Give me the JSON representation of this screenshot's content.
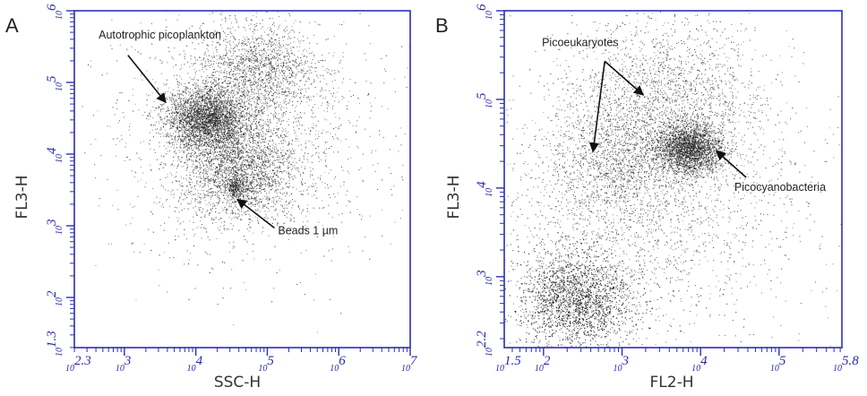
{
  "chart_data": [
    {
      "type": "scatter",
      "panel": "A",
      "xlabel": "SSC-H",
      "ylabel": "FL3-H",
      "xscale": "log",
      "yscale": "log",
      "xlim": [
        2.3,
        7
      ],
      "ylim": [
        1.3,
        6
      ],
      "x_ticks": [
        {
          "exp": "2.3",
          "value": 2.3
        },
        {
          "exp": "3",
          "value": 3
        },
        {
          "exp": "4",
          "value": 4
        },
        {
          "exp": "5",
          "value": 5
        },
        {
          "exp": "6",
          "value": 6
        },
        {
          "exp": "7",
          "value": 7
        }
      ],
      "y_ticks": [
        {
          "exp": "1.3",
          "value": 1.3
        },
        {
          "exp": "2",
          "value": 2
        },
        {
          "exp": "3",
          "value": 3
        },
        {
          "exp": "4",
          "value": 4
        },
        {
          "exp": "5",
          "value": 5
        },
        {
          "exp": "6",
          "value": 6
        }
      ],
      "clusters": [
        {
          "cx": 4.15,
          "cy": 4.5,
          "sx": 0.28,
          "sy": 0.22,
          "n": 3200
        },
        {
          "cx": 4.6,
          "cy": 3.8,
          "sx": 0.4,
          "sy": 0.35,
          "n": 2400
        },
        {
          "cx": 4.85,
          "cy": 5.2,
          "sx": 0.4,
          "sy": 0.3,
          "n": 1400
        },
        {
          "cx": 4.55,
          "cy": 3.55,
          "sx": 0.06,
          "sy": 0.08,
          "n": 260
        },
        {
          "cx": 4.7,
          "cy": 4.3,
          "sx": 0.9,
          "sy": 0.9,
          "n": 1800
        }
      ],
      "annotations": [
        {
          "text": "Autotrophic  picoplankton",
          "tx": 2.64,
          "ty": 5.61,
          "ax": 3.05,
          "ay": 5.38,
          "hx": 3.58,
          "hy": 4.72
        },
        {
          "text": "Beads 1 µm",
          "tx": 5.15,
          "ty": 2.88,
          "ax": 5.1,
          "ay": 2.97,
          "hx": 4.58,
          "hy": 3.37
        }
      ]
    },
    {
      "type": "scatter",
      "panel": "B",
      "xlabel": "FL2-H",
      "ylabel": "FL3-H",
      "xscale": "log",
      "yscale": "log",
      "xlim": [
        1.5,
        5.8
      ],
      "ylim": [
        2.2,
        6
      ],
      "x_ticks": [
        {
          "exp": "1.5",
          "value": 1.5
        },
        {
          "exp": "2",
          "value": 2
        },
        {
          "exp": "3",
          "value": 3
        },
        {
          "exp": "4",
          "value": 4
        },
        {
          "exp": "5",
          "value": 5
        },
        {
          "exp": "5.8",
          "value": 5.8
        }
      ],
      "y_ticks": [
        {
          "exp": "2.2",
          "value": 2.2
        },
        {
          "exp": "3",
          "value": 3
        },
        {
          "exp": "4",
          "value": 4
        },
        {
          "exp": "5",
          "value": 5
        },
        {
          "exp": "6",
          "value": 6
        }
      ],
      "clusters": [
        {
          "cx": 2.4,
          "cy": 2.75,
          "sx": 0.35,
          "sy": 0.28,
          "n": 3400
        },
        {
          "cx": 3.85,
          "cy": 4.45,
          "sx": 0.22,
          "sy": 0.14,
          "n": 2600
        },
        {
          "cx": 2.95,
          "cy": 4.3,
          "sx": 0.45,
          "sy": 0.4,
          "n": 1400
        },
        {
          "cx": 3.6,
          "cy": 5.0,
          "sx": 0.6,
          "sy": 0.45,
          "n": 1800
        },
        {
          "cx": 3.3,
          "cy": 3.8,
          "sx": 1.0,
          "sy": 0.8,
          "n": 2200
        }
      ],
      "annotations": [
        {
          "text": "Picoeukaryotes",
          "tx": 1.98,
          "ty": 5.6,
          "ax": 2.78,
          "ay": 5.43,
          "hx": 3.27,
          "hy": 5.05,
          "hx2": 2.63,
          "hy2": 4.41
        },
        {
          "text": "Picocyanobacteria",
          "tx": 4.43,
          "ty": 3.97,
          "ax": 4.58,
          "ay": 4.12,
          "hx": 4.2,
          "hy": 4.42
        }
      ]
    }
  ],
  "panels": {
    "a": {
      "letter": "A",
      "xlabel": "SSC-H",
      "ylabel": "FL3-H"
    },
    "b": {
      "letter": "B",
      "xlabel": "FL2-H",
      "ylabel": "FL3-H"
    }
  },
  "colors": {
    "axis": "#2d2db5",
    "points": "#1a1a1a",
    "text": "#222222"
  }
}
